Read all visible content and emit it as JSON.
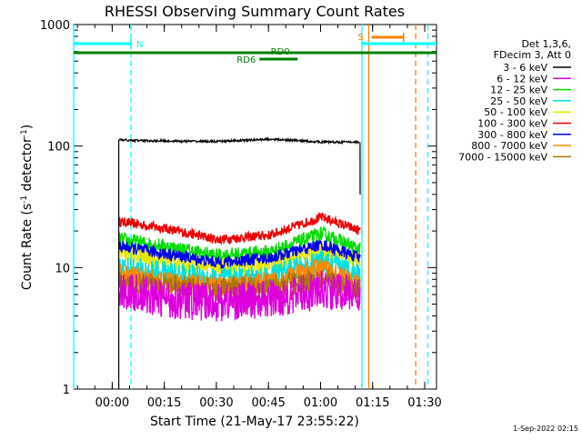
{
  "chart_data": {
    "type": "line",
    "title": "RHESSI Observing Summary Count Rates",
    "xlabel": "Start Time (21-May-17 23:55:22)",
    "ylabel_main": "Count Rate (s",
    "ylabel_sup1": "-1",
    "ylabel_mid": " detector",
    "ylabel_sup2": "-1",
    "ylabel_end": ")",
    "yscale": "log",
    "ylim": [
      1,
      1000
    ],
    "xlim_minutes": [
      -6.5,
      98
    ],
    "x_ticks": [
      {
        "label": "00:00",
        "minutes": 4.6
      },
      {
        "label": "00:15",
        "minutes": 19.6
      },
      {
        "label": "00:30",
        "minutes": 34.6
      },
      {
        "label": "00:45",
        "minutes": 49.6
      },
      {
        "label": "01:00",
        "minutes": 64.6
      },
      {
        "label": "01:15",
        "minutes": 79.6
      },
      {
        "label": "01:30",
        "minutes": 94.6
      }
    ],
    "y_ticks": [
      {
        "label": "1",
        "value": 1
      },
      {
        "label": "10",
        "value": 10
      },
      {
        "label": "100",
        "value": 100
      },
      {
        "label": "1000",
        "value": 1000
      }
    ],
    "legend_header": [
      "Det 1,3,6,",
      "FDecim 3, Att 0"
    ],
    "series": [
      {
        "name": "3 - 6 keV",
        "color": "#000000",
        "points": [
          [
            6.5,
            112
          ],
          [
            20,
            110
          ],
          [
            35,
            109
          ],
          [
            50,
            114
          ],
          [
            65,
            108
          ],
          [
            76,
            108
          ]
        ]
      },
      {
        "name": "6 - 12 keV",
        "color": "#dd00dd",
        "points": [
          [
            6.5,
            6.5
          ],
          [
            20,
            5.5
          ],
          [
            35,
            5.2
          ],
          [
            50,
            5.5
          ],
          [
            65,
            6.5
          ],
          [
            76,
            6.0
          ]
        ]
      },
      {
        "name": "12 - 25 keV",
        "color": "#00dd00",
        "points": [
          [
            6.5,
            17
          ],
          [
            20,
            15
          ],
          [
            35,
            12.5
          ],
          [
            50,
            13.5
          ],
          [
            65,
            19
          ],
          [
            76,
            14
          ]
        ]
      },
      {
        "name": "25 - 50 keV",
        "color": "#00e0e0",
        "points": [
          [
            6.5,
            10
          ],
          [
            20,
            9
          ],
          [
            35,
            8
          ],
          [
            50,
            8.5
          ],
          [
            65,
            11
          ],
          [
            76,
            9
          ]
        ]
      },
      {
        "name": "50 - 100 keV",
        "color": "#e6e600",
        "points": [
          [
            6.5,
            13
          ],
          [
            20,
            11.5
          ],
          [
            35,
            10
          ],
          [
            50,
            10.5
          ],
          [
            65,
            14
          ],
          [
            76,
            11
          ]
        ]
      },
      {
        "name": "100 - 300 keV",
        "color": "#ee0000",
        "points": [
          [
            6.5,
            24
          ],
          [
            20,
            21
          ],
          [
            35,
            17
          ],
          [
            50,
            18.5
          ],
          [
            65,
            26
          ],
          [
            76,
            20
          ]
        ]
      },
      {
        "name": "300 - 800 keV",
        "color": "#0000ee",
        "points": [
          [
            6.5,
            15
          ],
          [
            20,
            13
          ],
          [
            35,
            11
          ],
          [
            50,
            12
          ],
          [
            65,
            15.5
          ],
          [
            76,
            12
          ]
        ]
      },
      {
        "name": "800 - 7000 keV",
        "color": "#ff8800",
        "points": [
          [
            6.5,
            9
          ],
          [
            20,
            7.5
          ],
          [
            35,
            7
          ],
          [
            50,
            7.5
          ],
          [
            65,
            10
          ],
          [
            76,
            7
          ]
        ]
      },
      {
        "name": "7000 - 15000 keV",
        "color": "#aa7700",
        "points": [
          [
            6.5,
            7.5
          ],
          [
            20,
            7
          ],
          [
            35,
            6.5
          ],
          [
            50,
            7
          ],
          [
            65,
            8
          ],
          [
            76,
            6.5
          ]
        ]
      }
    ],
    "annotations": {
      "night": {
        "label": "N",
        "color": "#00ffff",
        "start_minutes": -6.5,
        "end_minutes": 10
      },
      "saa": {
        "label": "S",
        "color": "#ff8000",
        "start_minutes": 78.5,
        "end_minutes": 88.5
      },
      "rd0": {
        "label": "RD0",
        "color": "#008000",
        "start_minutes": -6.5,
        "end_minutes": 98
      },
      "rd6": {
        "label": "RD6",
        "color": "#008000",
        "start_minutes": 47,
        "end_minutes": 58
      },
      "vlines": [
        {
          "minutes": -6.5,
          "color": "#00ffff",
          "dash": false
        },
        {
          "minutes": 10,
          "color": "#00ffff",
          "dash": true
        },
        {
          "minutes": 76.5,
          "color": "#00ffff",
          "dash": false
        },
        {
          "minutes": 95.5,
          "color": "#00ffff",
          "dash": true
        },
        {
          "minutes": 78.5,
          "color": "#ff8000",
          "dash": false
        },
        {
          "minutes": 92,
          "color": "#ff8000",
          "dash": true
        }
      ]
    },
    "footer_timestamp": "1-Sep-2022 02:15"
  }
}
